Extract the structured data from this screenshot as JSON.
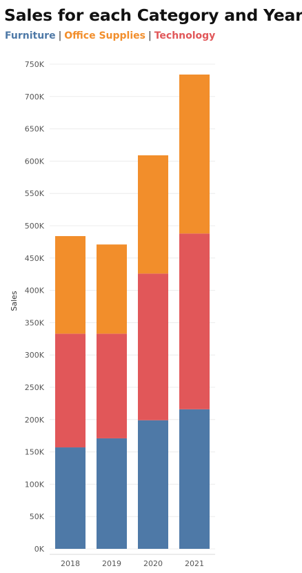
{
  "title": "Sales for each Category and Year",
  "legend": [
    {
      "label": "Furniture",
      "color": "#4e79a7"
    },
    {
      "label": "Office Supplies",
      "color": "#f28e2b"
    },
    {
      "label": "Technology",
      "color": "#e15759"
    }
  ],
  "legend_separator": "|",
  "chart_data": {
    "type": "bar",
    "stacked": true,
    "title": "Sales for each Category and Year",
    "xlabel": "",
    "ylabel": "Sales",
    "categories": [
      "2018",
      "2019",
      "2020",
      "2021"
    ],
    "series": [
      {
        "name": "Furniture",
        "color": "#4e79a7",
        "values": [
          157000,
          171000,
          199000,
          216000
        ]
      },
      {
        "name": "Technology",
        "color": "#e15759",
        "values": [
          176000,
          162000,
          227000,
          272000
        ]
      },
      {
        "name": "Office Supplies",
        "color": "#f28e2b",
        "values": [
          151000,
          138000,
          183000,
          246000
        ]
      }
    ],
    "ylim": [
      0,
      750000
    ],
    "yticks": [
      0,
      50000,
      100000,
      150000,
      200000,
      250000,
      300000,
      350000,
      400000,
      450000,
      500000,
      550000,
      600000,
      650000,
      700000,
      750000
    ],
    "ytick_labels": [
      "0K",
      "50K",
      "100K",
      "150K",
      "200K",
      "250K",
      "300K",
      "350K",
      "400K",
      "450K",
      "500K",
      "550K",
      "600K",
      "650K",
      "700K",
      "750K"
    ],
    "grid": true,
    "legend_position": "top-left"
  }
}
